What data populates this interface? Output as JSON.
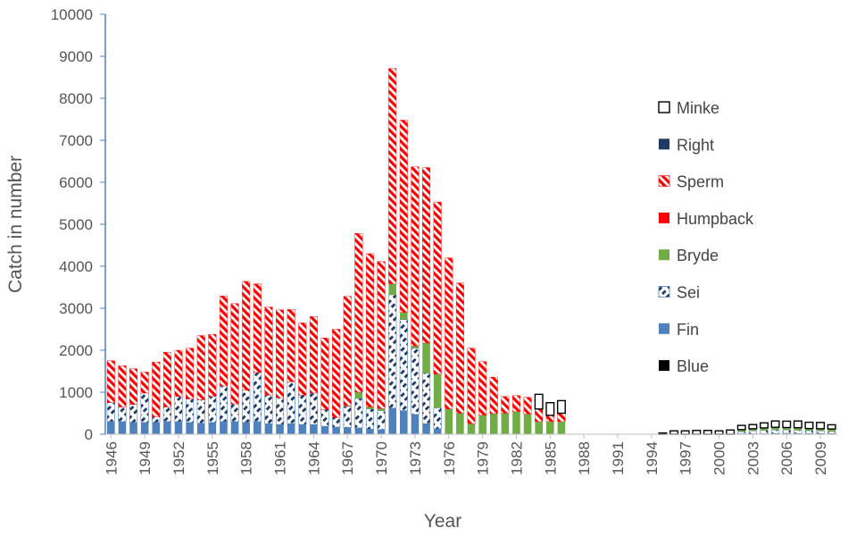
{
  "chart_data": {
    "type": "bar",
    "stacked": true,
    "xlabel": "Year",
    "ylabel": "Catch in number",
    "ylim": [
      0,
      10000
    ],
    "yticks": [
      0,
      1000,
      2000,
      3000,
      4000,
      5000,
      6000,
      7000,
      8000,
      9000,
      10000
    ],
    "x_tick_labels": [
      "1946",
      "1949",
      "1952",
      "1955",
      "1958",
      "1961",
      "1964",
      "1967",
      "1970",
      "1973",
      "1976",
      "1979",
      "1982",
      "1985",
      "1988",
      "1991",
      "1994",
      "1997",
      "2000",
      "2003",
      "2006",
      "2009"
    ],
    "legend_position": "right",
    "grid": false,
    "categories": [
      "1946",
      "1947",
      "1948",
      "1949",
      "1950",
      "1951",
      "1952",
      "1953",
      "1954",
      "1955",
      "1956",
      "1957",
      "1958",
      "1959",
      "1960",
      "1961",
      "1962",
      "1963",
      "1964",
      "1965",
      "1966",
      "1967",
      "1968",
      "1969",
      "1970",
      "1971",
      "1972",
      "1973",
      "1974",
      "1975",
      "1976",
      "1977",
      "1978",
      "1979",
      "1980",
      "1981",
      "1982",
      "1983",
      "1984",
      "1985",
      "1986",
      "1987",
      "1988",
      "1989",
      "1990",
      "1991",
      "1992",
      "1993",
      "1994",
      "1995",
      "1996",
      "1997",
      "1998",
      "1999",
      "2000",
      "2001",
      "2002",
      "2003",
      "2004",
      "2005",
      "2006",
      "2007",
      "2008",
      "2009",
      "2010"
    ],
    "series": [
      {
        "name": "Blue",
        "color": "#000000",
        "pattern": "solid",
        "values": [
          0,
          0,
          0,
          0,
          0,
          0,
          0,
          0,
          0,
          0,
          0,
          0,
          0,
          0,
          0,
          0,
          0,
          0,
          0,
          0,
          0,
          0,
          0,
          0,
          0,
          0,
          0,
          0,
          0,
          0,
          0,
          0,
          0,
          0,
          0,
          0,
          0,
          0,
          0,
          0,
          0,
          0,
          0,
          0,
          0,
          0,
          0,
          0,
          0,
          0,
          0,
          0,
          0,
          0,
          0,
          0,
          0,
          0,
          0,
          0,
          0,
          0,
          0,
          0,
          0
        ]
      },
      {
        "name": "Fin",
        "color": "#4F81BD",
        "pattern": "solid",
        "values": [
          300,
          300,
          280,
          280,
          280,
          300,
          300,
          280,
          260,
          280,
          300,
          300,
          280,
          300,
          250,
          230,
          250,
          230,
          230,
          190,
          170,
          160,
          150,
          120,
          110,
          620,
          560,
          470,
          250,
          130,
          0,
          0,
          0,
          0,
          0,
          0,
          0,
          0,
          0,
          0,
          0,
          0,
          0,
          0,
          0,
          0,
          0,
          0,
          0,
          0,
          0,
          0,
          0,
          0,
          0,
          0,
          10,
          10,
          10,
          15,
          20,
          15,
          15,
          15,
          15
        ]
      },
      {
        "name": "Sei",
        "color": "#1F3864",
        "pattern": "sei",
        "values": [
          450,
          350,
          430,
          700,
          130,
          350,
          600,
          560,
          560,
          620,
          850,
          420,
          770,
          1170,
          680,
          640,
          1000,
          700,
          750,
          400,
          230,
          500,
          700,
          480,
          450,
          2700,
          2170,
          1580,
          1200,
          500,
          0,
          0,
          0,
          0,
          0,
          0,
          0,
          0,
          0,
          0,
          0,
          0,
          0,
          0,
          0,
          0,
          0,
          0,
          0,
          0,
          0,
          0,
          0,
          0,
          0,
          0,
          50,
          70,
          80,
          90,
          80,
          80,
          70,
          65,
          50
        ]
      },
      {
        "name": "Bryde",
        "color": "#70AD47",
        "pattern": "solid",
        "values": [
          0,
          0,
          0,
          0,
          0,
          0,
          0,
          0,
          0,
          0,
          0,
          0,
          0,
          0,
          0,
          0,
          0,
          0,
          0,
          0,
          0,
          20,
          150,
          50,
          50,
          260,
          170,
          50,
          720,
          800,
          600,
          500,
          250,
          450,
          490,
          500,
          540,
          480,
          300,
          300,
          300,
          0,
          0,
          0,
          0,
          0,
          0,
          0,
          0,
          0,
          0,
          0,
          0,
          0,
          0,
          0,
          50,
          50,
          60,
          60,
          60,
          60,
          50,
          50,
          60
        ]
      },
      {
        "name": "Humpback",
        "color": "#FF0000",
        "pattern": "solid",
        "values": [
          0,
          0,
          0,
          0,
          0,
          0,
          0,
          0,
          0,
          0,
          0,
          0,
          0,
          0,
          0,
          0,
          0,
          0,
          0,
          0,
          0,
          0,
          0,
          0,
          0,
          0,
          0,
          0,
          0,
          0,
          0,
          0,
          0,
          0,
          0,
          0,
          0,
          0,
          0,
          0,
          0,
          0,
          0,
          0,
          0,
          0,
          0,
          0,
          0,
          0,
          0,
          0,
          0,
          0,
          0,
          0,
          0,
          0,
          0,
          0,
          0,
          0,
          0,
          0,
          0
        ]
      },
      {
        "name": "Sperm",
        "color": "#FF0000",
        "pattern": "sperm",
        "values": [
          1000,
          980,
          850,
          500,
          1310,
          1300,
          1100,
          1210,
          1530,
          1480,
          2140,
          2390,
          2590,
          2110,
          2100,
          2090,
          1720,
          1720,
          1820,
          1700,
          2100,
          2600,
          3780,
          3650,
          3500,
          5130,
          4580,
          4270,
          4180,
          4100,
          3600,
          3100,
          1800,
          1280,
          870,
          400,
          380,
          400,
          300,
          150,
          200,
          0,
          0,
          0,
          0,
          0,
          0,
          0,
          0,
          0,
          0,
          0,
          0,
          0,
          0,
          0,
          0,
          0,
          0,
          0,
          0,
          0,
          0,
          0,
          0
        ]
      },
      {
        "name": "Right",
        "color": "#1F3864",
        "pattern": "solid",
        "values": [
          0,
          0,
          0,
          0,
          0,
          0,
          0,
          0,
          0,
          0,
          0,
          0,
          0,
          0,
          0,
          0,
          0,
          0,
          0,
          0,
          0,
          0,
          0,
          0,
          0,
          0,
          0,
          0,
          0,
          0,
          0,
          0,
          0,
          0,
          0,
          0,
          0,
          0,
          0,
          0,
          0,
          0,
          0,
          0,
          0,
          0,
          0,
          0,
          0,
          0,
          0,
          0,
          0,
          0,
          0,
          0,
          0,
          0,
          0,
          0,
          0,
          0,
          0,
          0,
          0
        ]
      },
      {
        "name": "Minke",
        "color": "#000000",
        "pattern": "outline",
        "values": [
          0,
          0,
          0,
          0,
          0,
          0,
          0,
          0,
          0,
          0,
          0,
          0,
          0,
          0,
          0,
          0,
          0,
          0,
          0,
          0,
          0,
          0,
          0,
          0,
          0,
          0,
          0,
          0,
          0,
          0,
          0,
          0,
          0,
          0,
          0,
          0,
          0,
          0,
          350,
          300,
          300,
          0,
          0,
          0,
          0,
          0,
          0,
          0,
          0,
          30,
          80,
          80,
          90,
          90,
          80,
          100,
          100,
          100,
          120,
          150,
          150,
          160,
          150,
          150,
          100
        ]
      }
    ],
    "legend_order": [
      "Minke",
      "Right",
      "Sperm",
      "Humpback",
      "Bryde",
      "Sei",
      "Fin",
      "Blue"
    ]
  }
}
